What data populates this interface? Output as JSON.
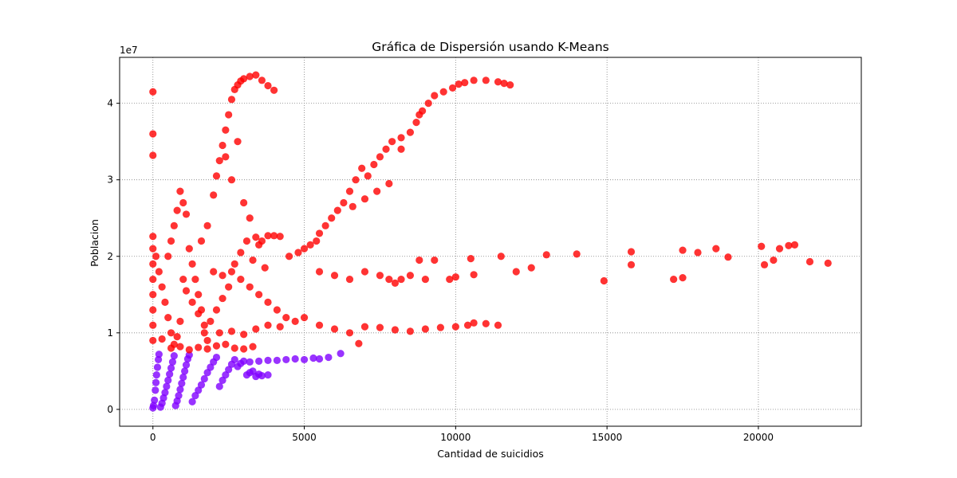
{
  "chart_data": {
    "type": "scatter",
    "title": "Gráfica de Dispersión usando K-Means",
    "xlabel": "Cantidad de suicidios",
    "ylabel": "Poblacion",
    "y_offset_label": "1e7",
    "xlim": [
      -1100,
      23400
    ],
    "ylim": [
      -2200000,
      46000000
    ],
    "xticks": [
      0,
      5000,
      10000,
      15000,
      20000
    ],
    "xtick_labels": [
      "0",
      "5000",
      "10000",
      "15000",
      "20000"
    ],
    "yticks": [
      0,
      10000000,
      20000000,
      30000000,
      40000000
    ],
    "ytick_labels": [
      "0",
      "1",
      "2",
      "3",
      "4"
    ],
    "grid": true,
    "legend": "none",
    "series": [
      {
        "color": "#8000ff",
        "points": [
          [
            0,
            200000
          ],
          [
            20,
            500000
          ],
          [
            50,
            1200000
          ],
          [
            80,
            2500000
          ],
          [
            100,
            3500000
          ],
          [
            120,
            4500000
          ],
          [
            150,
            5500000
          ],
          [
            180,
            6500000
          ],
          [
            200,
            7200000
          ],
          [
            250,
            300000
          ],
          [
            300,
            800000
          ],
          [
            350,
            1500000
          ],
          [
            400,
            2200000
          ],
          [
            450,
            3000000
          ],
          [
            500,
            3800000
          ],
          [
            550,
            4600000
          ],
          [
            600,
            5400000
          ],
          [
            650,
            6200000
          ],
          [
            700,
            7000000
          ],
          [
            750,
            500000
          ],
          [
            800,
            1100000
          ],
          [
            850,
            1800000
          ],
          [
            900,
            2600000
          ],
          [
            950,
            3400000
          ],
          [
            1000,
            4200000
          ],
          [
            1050,
            5000000
          ],
          [
            1100,
            5800000
          ],
          [
            1150,
            6600000
          ],
          [
            1200,
            7100000
          ],
          [
            1300,
            1000000
          ],
          [
            1400,
            1800000
          ],
          [
            1500,
            2500000
          ],
          [
            1600,
            3200000
          ],
          [
            1700,
            4000000
          ],
          [
            1800,
            4800000
          ],
          [
            1900,
            5500000
          ],
          [
            2000,
            6200000
          ],
          [
            2100,
            6800000
          ],
          [
            2200,
            3000000
          ],
          [
            2300,
            3800000
          ],
          [
            2400,
            4500000
          ],
          [
            2500,
            5200000
          ],
          [
            2600,
            5900000
          ],
          [
            2700,
            6500000
          ],
          [
            2800,
            5600000
          ],
          [
            2900,
            6000000
          ],
          [
            3000,
            6300000
          ],
          [
            3100,
            4500000
          ],
          [
            3200,
            4800000
          ],
          [
            3300,
            5000000
          ],
          [
            3400,
            4300000
          ],
          [
            3500,
            4600000
          ],
          [
            3600,
            4400000
          ],
          [
            3800,
            4500000
          ],
          [
            3200,
            6200000
          ],
          [
            3500,
            6300000
          ],
          [
            3800,
            6400000
          ],
          [
            4100,
            6400000
          ],
          [
            4400,
            6500000
          ],
          [
            4700,
            6600000
          ],
          [
            5000,
            6500000
          ],
          [
            5300,
            6700000
          ],
          [
            5500,
            6600000
          ],
          [
            5800,
            6800000
          ],
          [
            6200,
            7300000
          ]
        ]
      },
      {
        "color": "#ff0000",
        "points": [
          [
            0,
            41500000
          ],
          [
            0,
            36000000
          ],
          [
            0,
            33200000
          ],
          [
            0,
            22600000
          ],
          [
            0,
            21000000
          ],
          [
            0,
            19000000
          ],
          [
            0,
            17000000
          ],
          [
            0,
            15000000
          ],
          [
            0,
            13000000
          ],
          [
            0,
            11000000
          ],
          [
            0,
            9000000
          ],
          [
            100,
            20000000
          ],
          [
            200,
            18000000
          ],
          [
            300,
            16000000
          ],
          [
            400,
            14000000
          ],
          [
            500,
            12000000
          ],
          [
            600,
            10000000
          ],
          [
            700,
            8500000
          ],
          [
            800,
            9500000
          ],
          [
            900,
            11500000
          ],
          [
            500,
            20000000
          ],
          [
            600,
            22000000
          ],
          [
            700,
            24000000
          ],
          [
            800,
            26000000
          ],
          [
            900,
            28500000
          ],
          [
            1000,
            27000000
          ],
          [
            1100,
            25500000
          ],
          [
            1200,
            21000000
          ],
          [
            1300,
            19000000
          ],
          [
            1400,
            17000000
          ],
          [
            1500,
            15000000
          ],
          [
            1600,
            13000000
          ],
          [
            1700,
            11000000
          ],
          [
            1800,
            9000000
          ],
          [
            1600,
            22000000
          ],
          [
            1800,
            24000000
          ],
          [
            2000,
            28000000
          ],
          [
            2100,
            30500000
          ],
          [
            2200,
            32500000
          ],
          [
            2300,
            34500000
          ],
          [
            2400,
            36500000
          ],
          [
            2500,
            38500000
          ],
          [
            2600,
            40500000
          ],
          [
            2700,
            41800000
          ],
          [
            2800,
            42400000
          ],
          [
            2900,
            42900000
          ],
          [
            3000,
            43200000
          ],
          [
            3200,
            43500000
          ],
          [
            3400,
            43700000
          ],
          [
            3600,
            43000000
          ],
          [
            3800,
            42300000
          ],
          [
            4000,
            41700000
          ],
          [
            2400,
            33000000
          ],
          [
            2600,
            30000000
          ],
          [
            2800,
            35000000
          ],
          [
            3000,
            27000000
          ],
          [
            3200,
            25000000
          ],
          [
            3400,
            22500000
          ],
          [
            3600,
            22000000
          ],
          [
            3800,
            22700000
          ],
          [
            4000,
            22700000
          ],
          [
            4200,
            22600000
          ],
          [
            2000,
            18000000
          ],
          [
            2300,
            17500000
          ],
          [
            2600,
            18000000
          ],
          [
            2900,
            17000000
          ],
          [
            3200,
            16000000
          ],
          [
            3500,
            15000000
          ],
          [
            3800,
            14000000
          ],
          [
            4100,
            13000000
          ],
          [
            4400,
            12000000
          ],
          [
            4700,
            11500000
          ],
          [
            2200,
            10000000
          ],
          [
            2600,
            10200000
          ],
          [
            3000,
            9800000
          ],
          [
            3400,
            10500000
          ],
          [
            3800,
            11000000
          ],
          [
            4200,
            10800000
          ],
          [
            4500,
            20000000
          ],
          [
            4800,
            20500000
          ],
          [
            5000,
            21000000
          ],
          [
            5200,
            21500000
          ],
          [
            5400,
            22000000
          ],
          [
            5500,
            23000000
          ],
          [
            5700,
            24000000
          ],
          [
            5900,
            25000000
          ],
          [
            6100,
            26000000
          ],
          [
            6300,
            27000000
          ],
          [
            6500,
            28500000
          ],
          [
            6700,
            30000000
          ],
          [
            6900,
            31500000
          ],
          [
            7100,
            30500000
          ],
          [
            7300,
            32000000
          ],
          [
            7500,
            33000000
          ],
          [
            7700,
            34000000
          ],
          [
            7900,
            35000000
          ],
          [
            8200,
            35500000
          ],
          [
            8500,
            36200000
          ],
          [
            8700,
            37500000
          ],
          [
            8900,
            39000000
          ],
          [
            9100,
            40000000
          ],
          [
            9300,
            41000000
          ],
          [
            9600,
            41500000
          ],
          [
            9900,
            42000000
          ],
          [
            10100,
            42500000
          ],
          [
            10300,
            42700000
          ],
          [
            10600,
            43000000
          ],
          [
            11000,
            43000000
          ],
          [
            11400,
            42800000
          ],
          [
            11600,
            42600000
          ],
          [
            11800,
            42400000
          ],
          [
            8800,
            38500000
          ],
          [
            8200,
            34000000
          ],
          [
            7800,
            29500000
          ],
          [
            7400,
            28500000
          ],
          [
            7000,
            27500000
          ],
          [
            6600,
            26500000
          ],
          [
            5500,
            18000000
          ],
          [
            6000,
            17500000
          ],
          [
            6500,
            17000000
          ],
          [
            7000,
            18000000
          ],
          [
            7500,
            17500000
          ],
          [
            7800,
            17000000
          ],
          [
            8000,
            16500000
          ],
          [
            8200,
            17000000
          ],
          [
            8500,
            17500000
          ],
          [
            8800,
            19500000
          ],
          [
            9000,
            17000000
          ],
          [
            9300,
            19500000
          ],
          [
            9800,
            17000000
          ],
          [
            10000,
            17300000
          ],
          [
            10500,
            19700000
          ],
          [
            10600,
            17600000
          ],
          [
            11500,
            20000000
          ],
          [
            12000,
            18000000
          ],
          [
            12500,
            18500000
          ],
          [
            13000,
            20200000
          ],
          [
            14000,
            20300000
          ],
          [
            14900,
            16800000
          ],
          [
            15800,
            20600000
          ],
          [
            15800,
            18900000
          ],
          [
            17200,
            17000000
          ],
          [
            17500,
            17200000
          ],
          [
            17500,
            20800000
          ],
          [
            18000,
            20500000
          ],
          [
            18600,
            21000000
          ],
          [
            19000,
            19900000
          ],
          [
            20100,
            21300000
          ],
          [
            20200,
            18900000
          ],
          [
            20500,
            19500000
          ],
          [
            20700,
            21000000
          ],
          [
            21000,
            21400000
          ],
          [
            21200,
            21500000
          ],
          [
            21700,
            19300000
          ],
          [
            22300,
            19100000
          ],
          [
            5000,
            12000000
          ],
          [
            5500,
            11000000
          ],
          [
            6000,
            10500000
          ],
          [
            6500,
            10000000
          ],
          [
            6800,
            8600000
          ],
          [
            7000,
            10800000
          ],
          [
            7500,
            10700000
          ],
          [
            8000,
            10400000
          ],
          [
            8500,
            10200000
          ],
          [
            9000,
            10500000
          ],
          [
            9500,
            10700000
          ],
          [
            10000,
            10800000
          ],
          [
            10400,
            11000000
          ],
          [
            10600,
            11300000
          ],
          [
            11000,
            11200000
          ],
          [
            11400,
            11000000
          ],
          [
            1000,
            17000000
          ],
          [
            1100,
            15500000
          ],
          [
            1300,
            14000000
          ],
          [
            1500,
            12500000
          ],
          [
            1700,
            10000000
          ],
          [
            1900,
            11500000
          ],
          [
            2100,
            13000000
          ],
          [
            2300,
            14500000
          ],
          [
            2500,
            16000000
          ],
          [
            2700,
            19000000
          ],
          [
            2900,
            20500000
          ],
          [
            3100,
            22000000
          ],
          [
            3300,
            19500000
          ],
          [
            3500,
            21500000
          ],
          [
            3700,
            18500000
          ],
          [
            300,
            9200000
          ],
          [
            600,
            8000000
          ],
          [
            900,
            8200000
          ],
          [
            1200,
            7800000
          ],
          [
            1500,
            8100000
          ],
          [
            1800,
            7900000
          ],
          [
            2100,
            8300000
          ],
          [
            2400,
            8500000
          ],
          [
            2700,
            8000000
          ],
          [
            3000,
            7900000
          ],
          [
            3300,
            8200000
          ]
        ]
      }
    ]
  }
}
